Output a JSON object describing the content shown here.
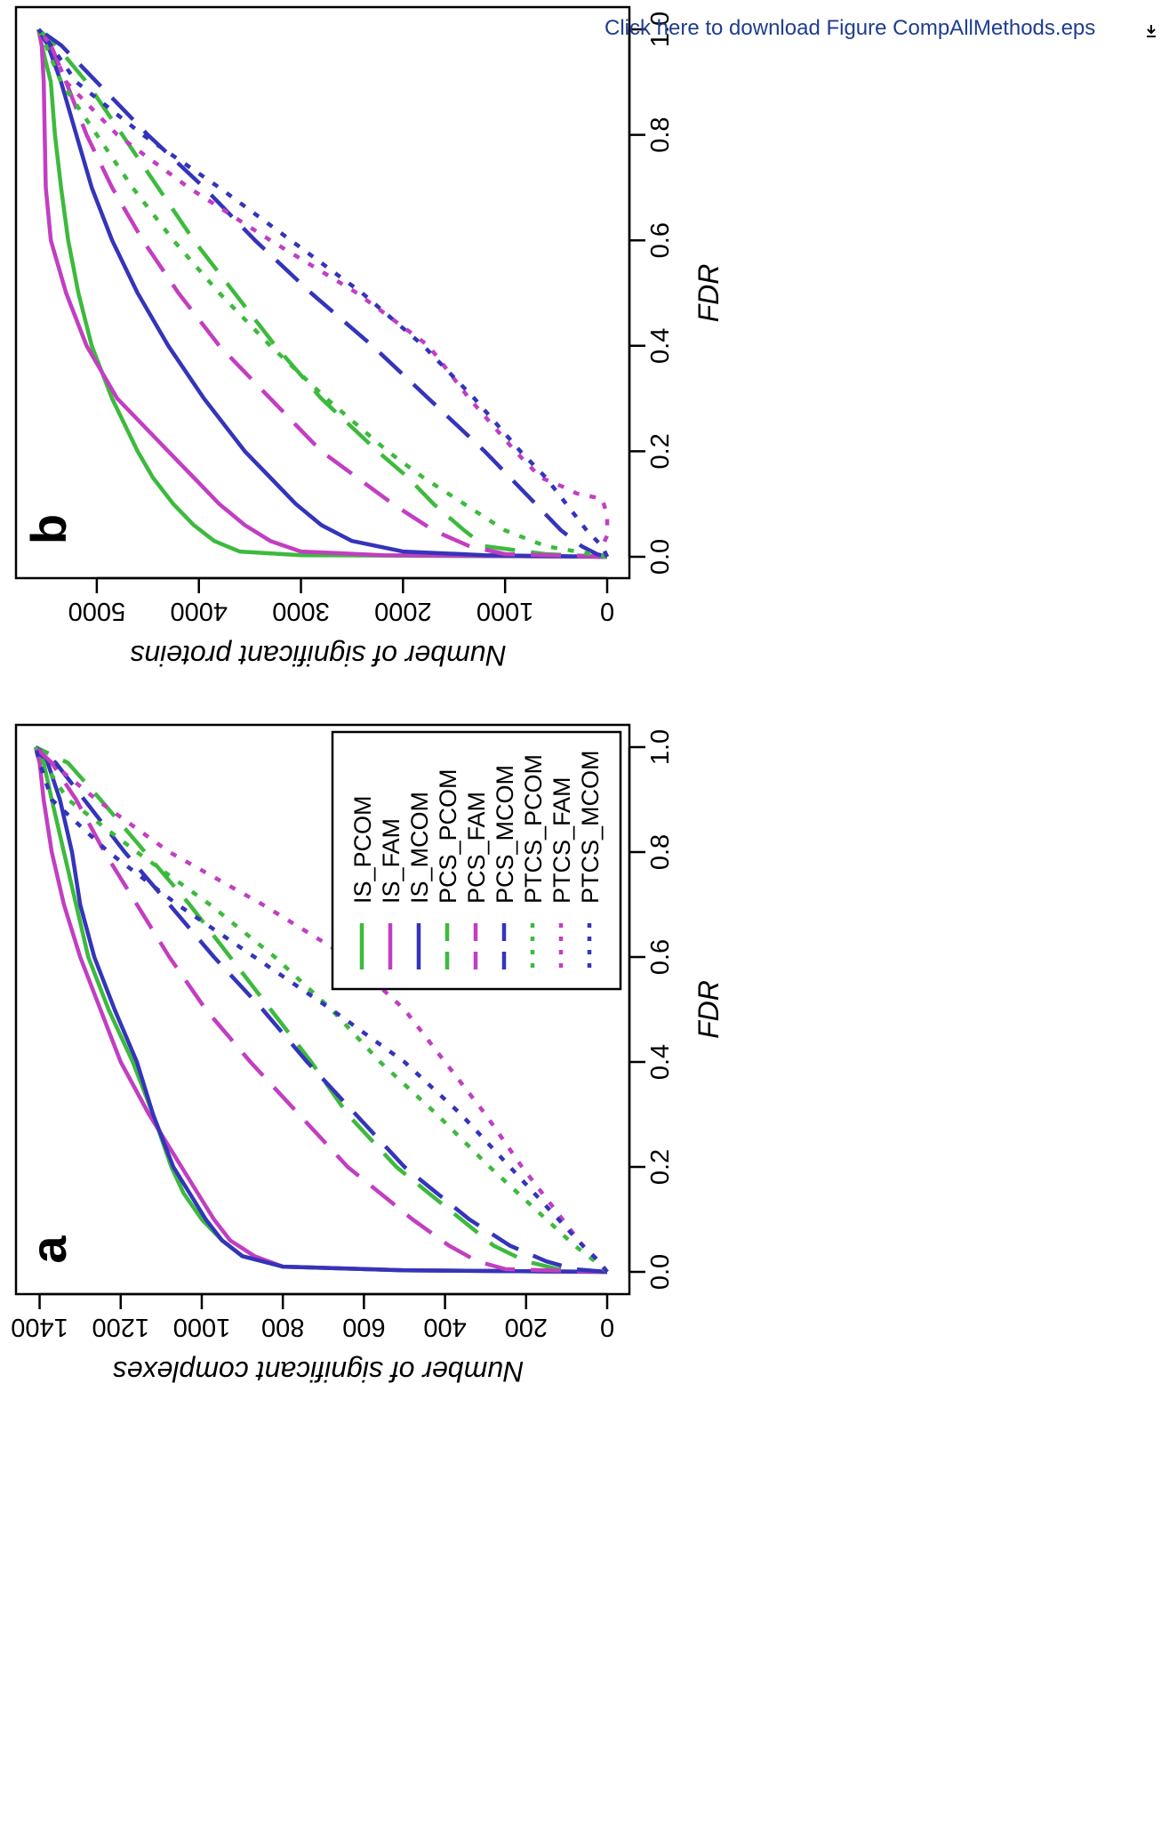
{
  "download_link": {
    "label": "Click here to download Figure CompAllMethods.eps",
    "icon": "download-icon"
  },
  "colors": {
    "IS": "#3dba3d",
    "FAM": "#c23ec2",
    "MCOM": "#3434bb",
    "PCOM": "#3dba3d",
    "axis": "#000000"
  },
  "chart_data": [
    {
      "type": "line",
      "panel": "a",
      "title": "",
      "xlabel": "FDR",
      "ylabel": "Number of significant complexes",
      "xlim": [
        0,
        1
      ],
      "ylim": [
        0,
        1410
      ],
      "x_ticks": [
        "0.0",
        "0.2",
        "0.4",
        "0.6",
        "0.8",
        "1.0"
      ],
      "y_ticks": [
        "0",
        "200",
        "400",
        "600",
        "800",
        "1000",
        "1200",
        "1400"
      ],
      "legend_position": "top-right",
      "series": [
        {
          "name": "IS_PCOM",
          "style": "solid",
          "color": "#3dba3d",
          "x": [
            0,
            0.003,
            0.01,
            0.03,
            0.06,
            0.1,
            0.15,
            0.2,
            0.3,
            0.4,
            0.5,
            0.6,
            0.7,
            0.8,
            0.9,
            0.97,
            1.0
          ],
          "y": [
            0,
            500,
            800,
            900,
            950,
            1000,
            1045,
            1075,
            1120,
            1170,
            1230,
            1280,
            1310,
            1340,
            1370,
            1390,
            1410
          ]
        },
        {
          "name": "IS_FAM",
          "style": "solid",
          "color": "#c23ec2",
          "x": [
            0,
            0.003,
            0.01,
            0.03,
            0.06,
            0.1,
            0.15,
            0.2,
            0.3,
            0.4,
            0.5,
            0.6,
            0.7,
            0.8,
            0.9,
            0.97,
            1.0
          ],
          "y": [
            0,
            500,
            800,
            870,
            930,
            970,
            1010,
            1050,
            1130,
            1200,
            1250,
            1300,
            1340,
            1370,
            1390,
            1400,
            1410
          ]
        },
        {
          "name": "IS_MCOM",
          "style": "solid",
          "color": "#3434bb",
          "x": [
            0,
            0.003,
            0.01,
            0.03,
            0.06,
            0.1,
            0.15,
            0.2,
            0.3,
            0.4,
            0.5,
            0.6,
            0.7,
            0.8,
            0.9,
            0.97,
            1.0
          ],
          "y": [
            0,
            500,
            800,
            900,
            950,
            990,
            1030,
            1070,
            1120,
            1160,
            1215,
            1265,
            1300,
            1320,
            1350,
            1380,
            1410
          ]
        },
        {
          "name": "PCS_PCOM",
          "style": "dashed",
          "color": "#3dba3d",
          "x": [
            0,
            0.005,
            0.02,
            0.05,
            0.1,
            0.15,
            0.2,
            0.3,
            0.4,
            0.5,
            0.6,
            0.7,
            0.8,
            0.9,
            0.97,
            1.0
          ],
          "y": [
            0,
            120,
            200,
            280,
            360,
            440,
            520,
            640,
            730,
            830,
            930,
            1030,
            1140,
            1250,
            1330,
            1410
          ]
        },
        {
          "name": "PCS_FAM",
          "style": "dashed",
          "color": "#c23ec2",
          "x": [
            0,
            0.005,
            0.02,
            0.05,
            0.1,
            0.15,
            0.2,
            0.3,
            0.4,
            0.5,
            0.6,
            0.7,
            0.8,
            0.9,
            0.97,
            1.0
          ],
          "y": [
            0,
            250,
            320,
            390,
            480,
            560,
            640,
            760,
            880,
            990,
            1080,
            1160,
            1240,
            1310,
            1370,
            1410
          ]
        },
        {
          "name": "PCS_MCOM",
          "style": "dashed",
          "color": "#3434bb",
          "x": [
            0,
            0.005,
            0.02,
            0.05,
            0.1,
            0.15,
            0.2,
            0.3,
            0.4,
            0.5,
            0.6,
            0.7,
            0.8,
            0.9,
            0.97,
            1.0
          ],
          "y": [
            0,
            80,
            150,
            240,
            340,
            420,
            500,
            620,
            740,
            850,
            970,
            1080,
            1190,
            1290,
            1360,
            1410
          ]
        },
        {
          "name": "PTCS_PCOM",
          "style": "dotted",
          "color": "#3dba3d",
          "x": [
            0,
            0.02,
            0.05,
            0.1,
            0.15,
            0.2,
            0.3,
            0.4,
            0.5,
            0.6,
            0.7,
            0.8,
            0.9,
            0.97,
            1.0
          ],
          "y": [
            0,
            30,
            80,
            150,
            220,
            290,
            420,
            560,
            680,
            820,
            980,
            1160,
            1330,
            1390,
            1410
          ]
        },
        {
          "name": "PTCS_FAM",
          "style": "dotted",
          "color": "#c23ec2",
          "x": [
            0,
            0.02,
            0.05,
            0.1,
            0.15,
            0.2,
            0.3,
            0.4,
            0.5,
            0.6,
            0.7,
            0.8,
            0.9,
            0.97,
            1.0
          ],
          "y": [
            0,
            20,
            60,
            110,
            160,
            210,
            300,
            400,
            500,
            640,
            850,
            1080,
            1260,
            1370,
            1410
          ]
        },
        {
          "name": "PTCS_MCOM",
          "style": "dotted",
          "color": "#3434bb",
          "x": [
            0,
            0.02,
            0.05,
            0.1,
            0.15,
            0.2,
            0.3,
            0.4,
            0.5,
            0.6,
            0.7,
            0.8,
            0.9,
            0.97,
            1.0
          ],
          "y": [
            0,
            20,
            60,
            120,
            180,
            240,
            360,
            500,
            680,
            870,
            1060,
            1230,
            1370,
            1400,
            1410
          ]
        }
      ]
    },
    {
      "type": "line",
      "panel": "b",
      "title": "",
      "xlabel": "FDR",
      "ylabel": "Number of significant proteins",
      "xlim": [
        0,
        1
      ],
      "ylim": [
        0,
        5600
      ],
      "x_ticks": [
        "0.0",
        "0.2",
        "0.4",
        "0.6",
        "0.8",
        "1.0"
      ],
      "y_ticks": [
        "0",
        "1000",
        "2000",
        "3000",
        "4000",
        "5000"
      ],
      "series": [
        {
          "name": "IS_PCOM",
          "style": "solid",
          "color": "#3dba3d",
          "x": [
            0,
            0.003,
            0.01,
            0.03,
            0.06,
            0.1,
            0.15,
            0.2,
            0.3,
            0.4,
            0.5,
            0.6,
            0.7,
            0.8,
            0.9,
            0.97,
            1.0
          ],
          "y": [
            0,
            3000,
            3600,
            3850,
            4050,
            4250,
            4450,
            4600,
            4850,
            5050,
            5180,
            5280,
            5350,
            5410,
            5450,
            5540,
            5570
          ]
        },
        {
          "name": "IS_FAM",
          "style": "solid",
          "color": "#c23ec2",
          "x": [
            0,
            0.003,
            0.01,
            0.03,
            0.06,
            0.1,
            0.15,
            0.2,
            0.3,
            0.4,
            0.5,
            0.6,
            0.7,
            0.8,
            0.9,
            0.97,
            1.0
          ],
          "y": [
            0,
            2200,
            3000,
            3300,
            3550,
            3800,
            4050,
            4300,
            4800,
            5100,
            5300,
            5450,
            5500,
            5510,
            5520,
            5540,
            5570
          ]
        },
        {
          "name": "IS_MCOM",
          "style": "solid",
          "color": "#3434bb",
          "x": [
            0,
            0.003,
            0.01,
            0.03,
            0.06,
            0.1,
            0.15,
            0.2,
            0.3,
            0.4,
            0.5,
            0.6,
            0.7,
            0.8,
            0.9,
            0.97,
            1.0
          ],
          "y": [
            0,
            1200,
            2000,
            2500,
            2800,
            3050,
            3300,
            3550,
            3950,
            4300,
            4600,
            4850,
            5050,
            5200,
            5350,
            5480,
            5570
          ]
        },
        {
          "name": "PCS_PCOM",
          "style": "dashed",
          "color": "#3dba3d",
          "x": [
            0,
            0.005,
            0.02,
            0.05,
            0.1,
            0.15,
            0.2,
            0.3,
            0.4,
            0.5,
            0.6,
            0.7,
            0.8,
            0.9,
            0.97,
            1.0
          ],
          "y": [
            0,
            600,
            1200,
            1400,
            1700,
            1950,
            2250,
            2800,
            3250,
            3650,
            4050,
            4400,
            4750,
            5100,
            5400,
            5570
          ]
        },
        {
          "name": "PCS_FAM",
          "style": "dashed",
          "color": "#c23ec2",
          "x": [
            0,
            0.005,
            0.02,
            0.05,
            0.1,
            0.15,
            0.2,
            0.3,
            0.4,
            0.5,
            0.6,
            0.7,
            0.8,
            0.9,
            0.97,
            1.0
          ],
          "y": [
            0,
            1000,
            1350,
            1700,
            2100,
            2450,
            2800,
            3300,
            3800,
            4200,
            4550,
            4850,
            5100,
            5300,
            5450,
            5570
          ]
        },
        {
          "name": "PCS_MCOM",
          "style": "dashed",
          "color": "#3434bb",
          "x": [
            0,
            0.005,
            0.02,
            0.05,
            0.1,
            0.15,
            0.2,
            0.3,
            0.4,
            0.5,
            0.6,
            0.7,
            0.8,
            0.9,
            0.97,
            1.0
          ],
          "y": [
            0,
            100,
            250,
            450,
            700,
            950,
            1200,
            1750,
            2300,
            2900,
            3450,
            3950,
            4500,
            5000,
            5350,
            5570
          ]
        },
        {
          "name": "PTCS_PCOM",
          "style": "dotted",
          "color": "#3dba3d",
          "x": [
            0,
            0.02,
            0.05,
            0.1,
            0.15,
            0.2,
            0.3,
            0.4,
            0.5,
            0.6,
            0.7,
            0.8,
            0.9,
            0.97,
            1.0
          ],
          "y": [
            0,
            600,
            1000,
            1400,
            1800,
            2150,
            2750,
            3300,
            3800,
            4250,
            4650,
            5000,
            5350,
            5500,
            5570
          ]
        },
        {
          "name": "PTCS_FAM",
          "style": "dotted",
          "color": "#c23ec2",
          "x": [
            0,
            0.02,
            0.04,
            0.08,
            0.11,
            0.12,
            0.13,
            0.15,
            0.2,
            0.3,
            0.4,
            0.5,
            0.6,
            0.7,
            0.8,
            0.9,
            0.97,
            1.0
          ],
          "y": [
            0,
            50,
            0,
            0,
            50,
            300,
            400,
            650,
            900,
            1350,
            1750,
            2450,
            3300,
            4100,
            4800,
            5300,
            5450,
            5570
          ]
        },
        {
          "name": "PTCS_MCOM",
          "style": "dotted",
          "color": "#3434bb",
          "x": [
            0,
            0.02,
            0.05,
            0.1,
            0.15,
            0.2,
            0.3,
            0.4,
            0.5,
            0.6,
            0.7,
            0.8,
            0.9,
            0.97,
            1.0
          ],
          "y": [
            0,
            50,
            200,
            400,
            600,
            850,
            1300,
            1800,
            2400,
            3100,
            3800,
            4550,
            5200,
            5450,
            5570
          ]
        }
      ]
    }
  ]
}
